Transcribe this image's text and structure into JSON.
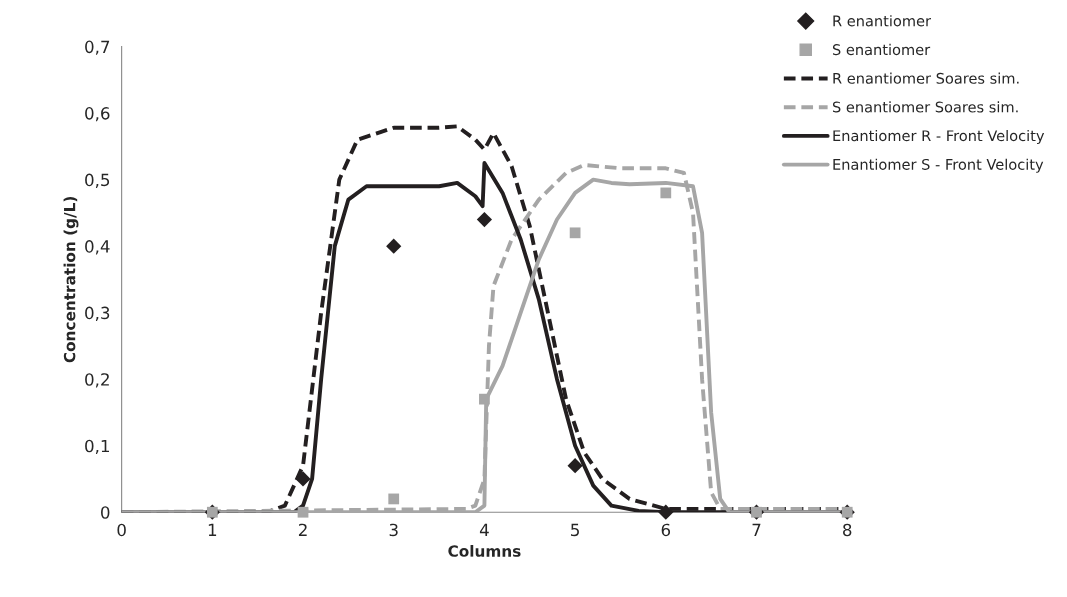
{
  "chart_data": {
    "type": "line",
    "xlabel": "Columns",
    "ylabel": "Concentration (g/L)",
    "xlim": [
      0,
      8
    ],
    "xticks": [
      0,
      1,
      2,
      3,
      4,
      5,
      6,
      7,
      8
    ],
    "ylim": [
      0,
      0.7
    ],
    "yticks": [
      {
        "value": 0,
        "label": "0"
      },
      {
        "value": 0.1,
        "label": "0,1"
      },
      {
        "value": 0.2,
        "label": "0,2"
      },
      {
        "value": 0.3,
        "label": "0,3"
      },
      {
        "value": 0.4,
        "label": "0,4"
      },
      {
        "value": 0.5,
        "label": "0,5"
      },
      {
        "value": 0.6,
        "label": "0,6"
      },
      {
        "value": 0.7,
        "label": "0,7"
      }
    ],
    "grid": false,
    "legend": "top right",
    "series": [
      {
        "name": "R enantiomer",
        "type": "scatter",
        "marker": "diamond",
        "color": "#231f20",
        "x": [
          1,
          2,
          3,
          4,
          5,
          6,
          7,
          8
        ],
        "values": [
          0,
          0.05,
          0.4,
          0.44,
          0.07,
          0,
          0,
          0
        ]
      },
      {
        "name": "S enantiomer",
        "type": "scatter",
        "marker": "square",
        "color": "#a6a6a6",
        "x": [
          1,
          2,
          3,
          4,
          5,
          6,
          7,
          8
        ],
        "values": [
          0,
          0,
          0.02,
          0.17,
          0.42,
          0.48,
          0,
          0
        ]
      },
      {
        "name": "R enantiomer Soares sim.",
        "line_style": "dashed",
        "color": "#231f20",
        "x": [
          0,
          1.6,
          1.8,
          2.0,
          2.2,
          2.4,
          2.6,
          3.0,
          3.5,
          3.7,
          3.9,
          4.0,
          4.1,
          4.3,
          4.5,
          4.7,
          4.9,
          5.1,
          5.3,
          5.6,
          6.0,
          6.5,
          8
        ],
        "values": [
          0,
          0,
          0.01,
          0.07,
          0.3,
          0.5,
          0.56,
          0.578,
          0.578,
          0.58,
          0.56,
          0.545,
          0.57,
          0.52,
          0.43,
          0.3,
          0.17,
          0.09,
          0.05,
          0.02,
          0.005,
          0.005,
          0.005
        ]
      },
      {
        "name": "S enantiomer Soares sim.",
        "line_style": "dashed",
        "color": "#a6a6a6",
        "x": [
          0,
          3.8,
          3.9,
          4.0,
          4.05,
          4.1,
          4.3,
          4.6,
          4.9,
          5.1,
          5.5,
          6.0,
          6.2,
          6.3,
          6.4,
          6.5,
          6.6,
          8
        ],
        "values": [
          0,
          0.005,
          0.01,
          0.05,
          0.25,
          0.34,
          0.41,
          0.47,
          0.51,
          0.522,
          0.517,
          0.517,
          0.51,
          0.45,
          0.2,
          0.03,
          0.005,
          0.005
        ]
      },
      {
        "name": "Enantiomer R - Front Velocity",
        "line_style": "solid",
        "color": "#231f20",
        "x": [
          0,
          1.9,
          2.0,
          2.1,
          2.2,
          2.35,
          2.5,
          2.7,
          3.5,
          3.7,
          3.9,
          3.98,
          4.0,
          4.2,
          4.4,
          4.6,
          4.8,
          5.0,
          5.2,
          5.4,
          5.7,
          6.0,
          8
        ],
        "values": [
          0,
          0,
          0.01,
          0.05,
          0.2,
          0.4,
          0.47,
          0.49,
          0.49,
          0.495,
          0.475,
          0.46,
          0.525,
          0.48,
          0.41,
          0.32,
          0.2,
          0.1,
          0.04,
          0.01,
          0.002,
          0,
          0
        ]
      },
      {
        "name": "Enantiomer S - Front Velocity",
        "line_style": "solid",
        "color": "#a6a6a6",
        "x": [
          0,
          3.9,
          4.0,
          4.02,
          4.2,
          4.4,
          4.6,
          4.8,
          5.0,
          5.2,
          5.4,
          5.6,
          6.0,
          6.3,
          6.4,
          6.5,
          6.6,
          6.7,
          8
        ],
        "values": [
          0,
          0,
          0.01,
          0.17,
          0.22,
          0.3,
          0.38,
          0.44,
          0.48,
          0.5,
          0.495,
          0.493,
          0.495,
          0.49,
          0.42,
          0.15,
          0.02,
          0,
          0
        ]
      }
    ]
  }
}
